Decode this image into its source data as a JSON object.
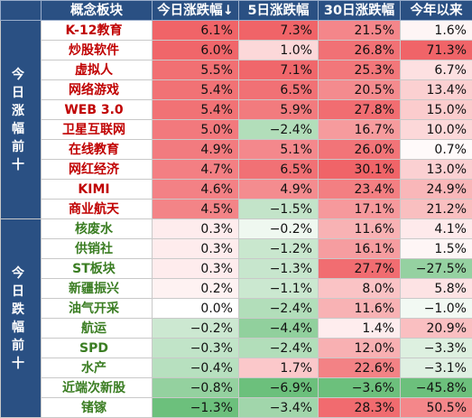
{
  "header": {
    "name": "概念板块",
    "d1": "今日涨跌幅↓",
    "d5": "5日涨跌幅",
    "d30": "30日涨跌幅",
    "ytd": "今年以来"
  },
  "groups": {
    "top": "今日涨幅前十",
    "bottom": "今日跌幅前十"
  },
  "colors": {
    "header_bg": "#2a5083",
    "top_name": "#c00000",
    "bottom_name": "#3a7d22",
    "up_strong": "#f06468",
    "up_light": "#fde0e1",
    "down_light": "#d5ecd9",
    "down_strong": "#6cc07c"
  },
  "rows": [
    {
      "name": "K-12教育",
      "d1": "6.1%",
      "d5": "7.3%",
      "d30": "21.5%",
      "ytd": "1.6%"
    },
    {
      "name": "炒股软件",
      "d1": "6.0%",
      "d5": "1.0%",
      "d30": "26.8%",
      "ytd": "71.3%"
    },
    {
      "name": "虚拟人",
      "d1": "5.5%",
      "d5": "7.1%",
      "d30": "25.3%",
      "ytd": "6.7%"
    },
    {
      "name": "网络游戏",
      "d1": "5.4%",
      "d5": "6.5%",
      "d30": "20.5%",
      "ytd": "13.4%"
    },
    {
      "name": "WEB 3.0",
      "d1": "5.4%",
      "d5": "5.9%",
      "d30": "27.8%",
      "ytd": "15.0%"
    },
    {
      "name": "卫星互联网",
      "d1": "5.0%",
      "d5": "−2.4%",
      "d30": "16.7%",
      "ytd": "10.0%"
    },
    {
      "name": "在线教育",
      "d1": "4.9%",
      "d5": "5.1%",
      "d30": "26.0%",
      "ytd": "0.7%"
    },
    {
      "name": "网红经济",
      "d1": "4.7%",
      "d5": "6.5%",
      "d30": "30.1%",
      "ytd": "13.0%"
    },
    {
      "name": "KIMI",
      "d1": "4.6%",
      "d5": "4.9%",
      "d30": "23.4%",
      "ytd": "24.9%"
    },
    {
      "name": "商业航天",
      "d1": "4.5%",
      "d5": "−1.5%",
      "d30": "17.1%",
      "ytd": "21.2%"
    },
    {
      "name": "核废水",
      "d1": "0.3%",
      "d5": "−0.2%",
      "d30": "11.6%",
      "ytd": "4.1%"
    },
    {
      "name": "供销社",
      "d1": "0.3%",
      "d5": "−1.2%",
      "d30": "16.1%",
      "ytd": "1.5%"
    },
    {
      "name": "ST板块",
      "d1": "0.3%",
      "d5": "−1.3%",
      "d30": "27.7%",
      "ytd": "−27.5%"
    },
    {
      "name": "新疆振兴",
      "d1": "0.2%",
      "d5": "−1.1%",
      "d30": "8.0%",
      "ytd": "5.8%"
    },
    {
      "name": "油气开采",
      "d1": "0.0%",
      "d5": "−2.4%",
      "d30": "11.6%",
      "ytd": "−1.0%"
    },
    {
      "name": "航运",
      "d1": "−0.2%",
      "d5": "−4.4%",
      "d30": "1.4%",
      "ytd": "20.9%"
    },
    {
      "name": "SPD",
      "d1": "−0.3%",
      "d5": "−2.4%",
      "d30": "12.0%",
      "ytd": "−3.3%"
    },
    {
      "name": "水产",
      "d1": "−0.4%",
      "d5": "1.7%",
      "d30": "22.6%",
      "ytd": "−3.1%"
    },
    {
      "name": "近端次新股",
      "d1": "−0.8%",
      "d5": "−6.9%",
      "d30": "−3.6%",
      "ytd": "−45.8%"
    },
    {
      "name": "锗镓",
      "d1": "−1.3%",
      "d5": "−3.4%",
      "d30": "28.3%",
      "ytd": "50.5%"
    }
  ]
}
